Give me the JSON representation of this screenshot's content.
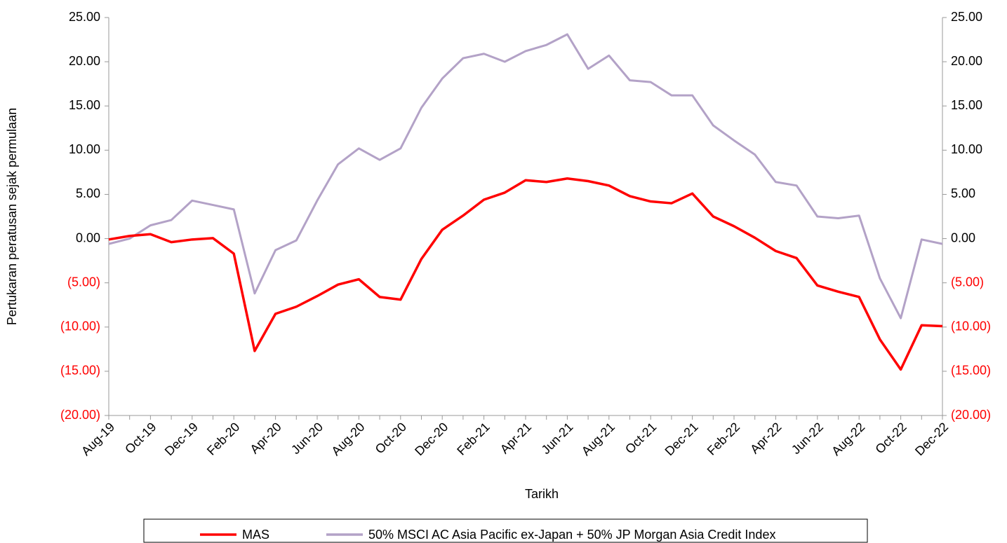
{
  "chart_data": {
    "type": "line",
    "x_label": "Tarikh",
    "y_label": "Pertukaran peratusan sejak permulaan",
    "categories": [
      "Aug-19",
      null,
      "Oct-19",
      null,
      "Dec-19",
      null,
      "Feb-20",
      null,
      "Apr-20",
      null,
      "Jun-20",
      null,
      "Aug-20",
      null,
      "Oct-20",
      null,
      "Dec-20",
      null,
      "Feb-21",
      null,
      "Apr-21",
      null,
      "Jun-21",
      null,
      "Aug-21",
      null,
      "Oct-21",
      null,
      "Dec-21",
      null,
      "Feb-22",
      null,
      "Apr-22",
      null,
      "Jun-22",
      null,
      "Aug-22",
      null,
      "Oct-22",
      null,
      "Dec-22"
    ],
    "series": [
      {
        "name": "MAS",
        "color": "#ff0000",
        "values": [
          -0.1,
          0.3,
          0.5,
          -0.4,
          -0.1,
          0.05,
          -1.7,
          -12.7,
          -8.5,
          -7.7,
          -6.5,
          -5.2,
          -4.6,
          -6.6,
          -6.9,
          -2.3,
          1.0,
          2.6,
          4.4,
          5.2,
          6.6,
          6.4,
          6.8,
          6.5,
          6.0,
          4.8,
          4.2,
          4.0,
          5.1,
          2.5,
          1.4,
          0.1,
          -1.4,
          -2.2,
          -5.3,
          -6.0,
          -6.6,
          -11.4,
          -14.8,
          -9.8,
          -9.9
        ]
      },
      {
        "name": "50% MSCI AC Asia Pacific ex-Japan + 50% JP Morgan Asia Credit Index",
        "color": "#b3a2c7",
        "axis": "y2",
        "values": [
          -0.6,
          0.0,
          1.5,
          2.1,
          4.3,
          3.8,
          3.3,
          -6.2,
          -1.3,
          -0.2,
          4.3,
          8.4,
          10.2,
          8.9,
          10.2,
          14.8,
          18.1,
          20.4,
          20.9,
          20.0,
          21.2,
          21.9,
          23.1,
          19.2,
          20.7,
          17.9,
          17.7,
          16.2,
          16.2,
          12.8,
          11.1,
          9.5,
          6.4,
          6.0,
          2.5,
          2.3,
          2.6,
          -4.5,
          -9.0,
          -0.1,
          -0.6
        ]
      }
    ],
    "ylim": [
      -20,
      25
    ],
    "yticks": [
      {
        "value": -20,
        "label": "(20.00)"
      },
      {
        "value": -15,
        "label": "(15.00)"
      },
      {
        "value": -10,
        "label": "(10.00)"
      },
      {
        "value": -5,
        "label": "(5.00)"
      },
      {
        "value": 0,
        "label": "0.00"
      },
      {
        "value": 5,
        "label": "5.00"
      },
      {
        "value": 10,
        "label": "10.00"
      },
      {
        "value": 15,
        "label": "15.00"
      },
      {
        "value": 20,
        "label": "20.00"
      },
      {
        "value": 25,
        "label": "25.00"
      }
    ],
    "y2lim": [
      -20,
      25
    ],
    "y2ticks": [
      {
        "value": -20,
        "label": "(20.00)"
      },
      {
        "value": -15,
        "label": "(15.00)"
      },
      {
        "value": -10,
        "label": "(10.00)"
      },
      {
        "value": -5,
        "label": "(5.00)"
      },
      {
        "value": 0,
        "label": "0.00"
      },
      {
        "value": 5,
        "label": "5.00"
      },
      {
        "value": 10,
        "label": "10.00"
      },
      {
        "value": 15,
        "label": "15.00"
      },
      {
        "value": 20,
        "label": "20.00"
      },
      {
        "value": 25,
        "label": "25.00"
      }
    ],
    "negative_tick_color": "#ff0000",
    "grid": false,
    "legend": "bottom"
  }
}
